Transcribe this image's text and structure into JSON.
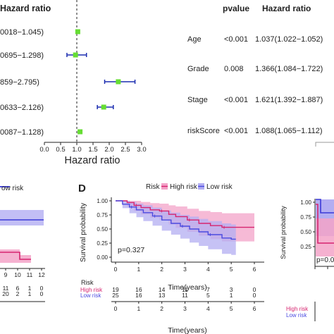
{
  "forest_left": {
    "header": "Hazard ratio",
    "rows": [
      {
        "ci_text": "0018−1.045)",
        "hr": 1.03,
        "lo": 1.018,
        "hi": 1.045
      },
      {
        "ci_text": "0695−1.298)",
        "hr": 0.96,
        "lo": 0.695,
        "hi": 1.298
      },
      {
        "ci_text": "859−2.795)",
        "hr": 2.28,
        "lo": 1.859,
        "hi": 2.795
      },
      {
        "ci_text": "0633−2.126)",
        "hr": 1.83,
        "lo": 1.633,
        "hi": 2.126
      },
      {
        "ci_text": "0087−1.128)",
        "hr": 1.1,
        "lo": 1.087,
        "hi": 1.128
      }
    ],
    "x_ticks": [
      "0.0",
      "0.5",
      "1.0",
      "1.5",
      "2.0",
      "2.5",
      "3.0"
    ],
    "xlabel": "Hazard ratio",
    "xlim": [
      0,
      3
    ],
    "ref_line": 1,
    "colors": {
      "point": "#66dd33",
      "ci": "#1c2db0"
    }
  },
  "forest_right": {
    "col_pvalue": "pvalue",
    "col_hr": "Hazard ratio",
    "rows": [
      {
        "name": "Age",
        "pvalue": "<0.001",
        "hr": "1.037(1.022−1.052)"
      },
      {
        "name": "Grade",
        "pvalue": "0.008",
        "hr": "1.366(1.084−1.722)"
      },
      {
        "name": "Stage",
        "pvalue": "<0.001",
        "hr": "1.621(1.392−1.887)"
      },
      {
        "name": "riskScore",
        "pvalue": "<0.001",
        "hr": "1.088(1.065−1.112)"
      }
    ]
  },
  "panel_c_fragment": {
    "legend_label": "ow risk",
    "x_ticks": [
      "9",
      "10",
      "11",
      "12"
    ],
    "table_high": [
      "11",
      "6",
      "1",
      "0"
    ],
    "table_low": [
      "20",
      "2",
      "1",
      "0"
    ]
  },
  "panel_d": {
    "letter": "D",
    "legend_title": "Risk",
    "legend_high": "High risk",
    "legend_low": "Low risk",
    "ylabel": "Survival probability",
    "y_ticks": [
      "0.00",
      "0.25",
      "0.50",
      "0.75",
      "1.00"
    ],
    "x_ticks": [
      "0",
      "1",
      "2",
      "3",
      "4",
      "5",
      "6"
    ],
    "xlabel": "Time(years)",
    "pvalue": "p=0.327",
    "table_title": "Risk",
    "table_high_label": "High risk",
    "table_low_label": "Low risk",
    "table_high": [
      "19",
      "16",
      "14",
      "11",
      "7",
      "3",
      "0"
    ],
    "table_low": [
      "25",
      "16",
      "13",
      "11",
      "5",
      "1",
      "0"
    ],
    "table_xlabel": "Time(years)",
    "colors": {
      "high": "#d6246f",
      "high_band": "#f3a3c8",
      "low": "#4b4be0",
      "low_band": "#b3aef2"
    }
  },
  "panel_e_fragment": {
    "y_ticks": [
      "1.00",
      "0.75",
      "0.50",
      "0.25"
    ],
    "ylabel": "Survival probability",
    "pvalue_partial": "p=0.0",
    "table_high_label": "High risk",
    "table_low_label": "Low risk"
  },
  "chart_data": [
    {
      "type": "scatter",
      "subtype": "forest",
      "categories": [
        "",
        "",
        "",
        "",
        ""
      ],
      "hr": [
        1.03,
        0.96,
        2.28,
        1.83,
        1.1
      ],
      "ci_low": [
        1.018,
        0.695,
        1.859,
        1.633,
        1.087
      ],
      "ci_high": [
        1.045,
        1.298,
        2.795,
        2.126,
        1.128
      ],
      "xlabel": "Hazard ratio",
      "xlim": [
        0,
        3
      ]
    },
    {
      "type": "table",
      "columns": [
        "",
        "pvalue",
        "Hazard ratio"
      ],
      "rows": [
        [
          "Age",
          "<0.001",
          "1.037(1.022−1.052)"
        ],
        [
          "Grade",
          "0.008",
          "1.366(1.084−1.722)"
        ],
        [
          "Stage",
          "<0.001",
          "1.621(1.392−1.887)"
        ],
        [
          "riskScore",
          "<0.001",
          "1.088(1.065−1.112)"
        ]
      ]
    },
    {
      "type": "line",
      "subtype": "kaplan-meier",
      "title": "",
      "xlabel": "Time(years)",
      "ylabel": "Survival probability",
      "xlim": [
        0,
        6
      ],
      "ylim": [
        0,
        1
      ],
      "legend_placement": "top",
      "annotation": "p=0.327",
      "series": [
        {
          "name": "High risk",
          "x": [
            0,
            0.5,
            0.8,
            1.1,
            1.5,
            1.9,
            2.3,
            2.6,
            3.1,
            3.6,
            4.1,
            4.6,
            5.0,
            5.6
          ],
          "y": [
            1.0,
            0.97,
            0.92,
            0.88,
            0.84,
            0.82,
            0.76,
            0.72,
            0.66,
            0.6,
            0.56,
            0.53,
            0.53,
            0.53
          ],
          "band_low": [
            1.0,
            0.9,
            0.82,
            0.76,
            0.7,
            0.66,
            0.58,
            0.52,
            0.45,
            0.38,
            0.32,
            0.28,
            0.28,
            0.28
          ],
          "band_high": [
            1.0,
            1.0,
            1.0,
            0.98,
            0.96,
            0.95,
            0.92,
            0.9,
            0.86,
            0.82,
            0.8,
            0.78,
            0.78,
            0.78
          ]
        },
        {
          "name": "Low risk",
          "x": [
            0,
            0.3,
            0.6,
            0.9,
            1.2,
            1.6,
            2.0,
            2.4,
            2.8,
            3.2,
            3.6,
            4.0,
            4.6,
            5.0
          ],
          "y": [
            1.0,
            0.94,
            0.89,
            0.84,
            0.79,
            0.73,
            0.66,
            0.6,
            0.55,
            0.5,
            0.45,
            0.4,
            0.34,
            0.32
          ],
          "band_low": [
            1.0,
            0.87,
            0.78,
            0.71,
            0.64,
            0.56,
            0.47,
            0.4,
            0.33,
            0.26,
            0.2,
            0.14,
            0.06,
            0.04
          ],
          "band_high": [
            1.0,
            1.0,
            0.98,
            0.95,
            0.92,
            0.88,
            0.83,
            0.79,
            0.75,
            0.72,
            0.68,
            0.64,
            0.6,
            0.58
          ]
        }
      ]
    }
  ]
}
